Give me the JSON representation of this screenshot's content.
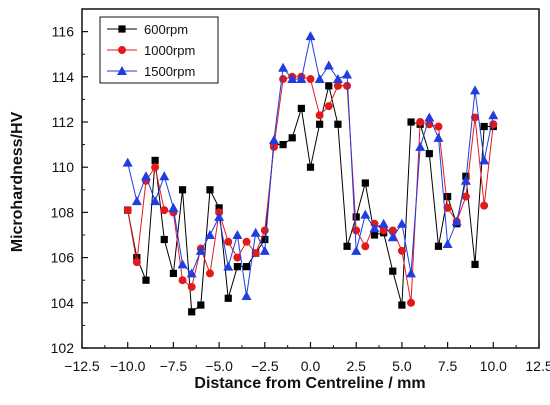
{
  "chart_data": {
    "type": "line",
    "xlabel": "Distance from Centreline / mm",
    "ylabel": "Microhardness/HV",
    "xlim": [
      -12.5,
      12.5
    ],
    "ylim": [
      102,
      117
    ],
    "xticks": [
      -12.5,
      -10.0,
      -7.5,
      -5.0,
      -2.5,
      0.0,
      2.5,
      5.0,
      7.5,
      10.0,
      12.5
    ],
    "xtick_labels": [
      "−12.5",
      "−10.0",
      "−7.5",
      "−5.0",
      "−2.5",
      "0.0",
      "2.5",
      "5.0",
      "7.5",
      "10.0",
      "12.5"
    ],
    "yticks": [
      102,
      104,
      106,
      108,
      110,
      112,
      114,
      116
    ],
    "ytick_labels": [
      "102",
      "104",
      "106",
      "108",
      "110",
      "112",
      "114",
      "116"
    ],
    "grid": false,
    "legend_position": "top-left",
    "x": [
      -10.0,
      -9.5,
      -9.0,
      -8.5,
      -8.0,
      -7.5,
      -7.0,
      -6.5,
      -6.0,
      -5.5,
      -5.0,
      -4.5,
      -4.0,
      -3.5,
      -3.0,
      -2.5,
      -2.0,
      -1.5,
      -1.0,
      -0.5,
      0.0,
      0.5,
      1.0,
      1.5,
      2.0,
      2.5,
      3.0,
      3.5,
      4.0,
      4.5,
      5.0,
      5.5,
      6.0,
      6.5,
      7.0,
      7.5,
      8.0,
      8.5,
      9.0,
      9.5,
      10.0
    ],
    "series": [
      {
        "name": "600rpm",
        "color": "#000000",
        "marker": "square",
        "values": [
          108.1,
          106.0,
          105.0,
          110.3,
          106.8,
          105.3,
          109.0,
          103.6,
          103.9,
          109.0,
          108.2,
          104.2,
          105.6,
          105.6,
          106.2,
          106.8,
          111.0,
          111.0,
          111.3,
          112.6,
          110.0,
          111.9,
          113.6,
          111.9,
          106.5,
          107.8,
          109.3,
          107.0,
          107.1,
          105.4,
          103.9,
          112.0,
          111.9,
          110.6,
          106.5,
          108.7,
          107.5,
          109.6,
          105.7,
          111.8,
          111.8
        ]
      },
      {
        "name": "1000rpm",
        "color": "#e31a1c",
        "marker": "circle",
        "values": [
          108.1,
          105.8,
          109.4,
          110.0,
          108.1,
          108.0,
          105.0,
          104.7,
          106.4,
          105.3,
          108.0,
          106.7,
          106.0,
          106.7,
          106.2,
          107.2,
          110.9,
          113.9,
          114.0,
          114.0,
          113.9,
          112.3,
          112.7,
          113.6,
          113.6,
          107.2,
          106.5,
          107.5,
          107.2,
          107.2,
          106.3,
          104.0,
          112.0,
          111.9,
          111.8,
          108.2,
          107.6,
          108.7,
          112.2,
          108.3,
          111.9
        ]
      },
      {
        "name": "1500rpm",
        "color": "#1f3de0",
        "marker": "triangle",
        "values": [
          110.2,
          108.5,
          109.6,
          108.5,
          109.6,
          108.2,
          105.7,
          105.3,
          106.3,
          107.0,
          107.8,
          105.6,
          107.0,
          104.3,
          107.1,
          106.3,
          111.2,
          114.4,
          113.9,
          113.9,
          115.8,
          113.9,
          114.5,
          113.9,
          114.1,
          106.3,
          107.9,
          107.3,
          107.5,
          106.9,
          107.5,
          105.3,
          110.9,
          112.2,
          111.3,
          106.6,
          107.6,
          109.4,
          113.4,
          110.3,
          112.3
        ]
      }
    ]
  }
}
